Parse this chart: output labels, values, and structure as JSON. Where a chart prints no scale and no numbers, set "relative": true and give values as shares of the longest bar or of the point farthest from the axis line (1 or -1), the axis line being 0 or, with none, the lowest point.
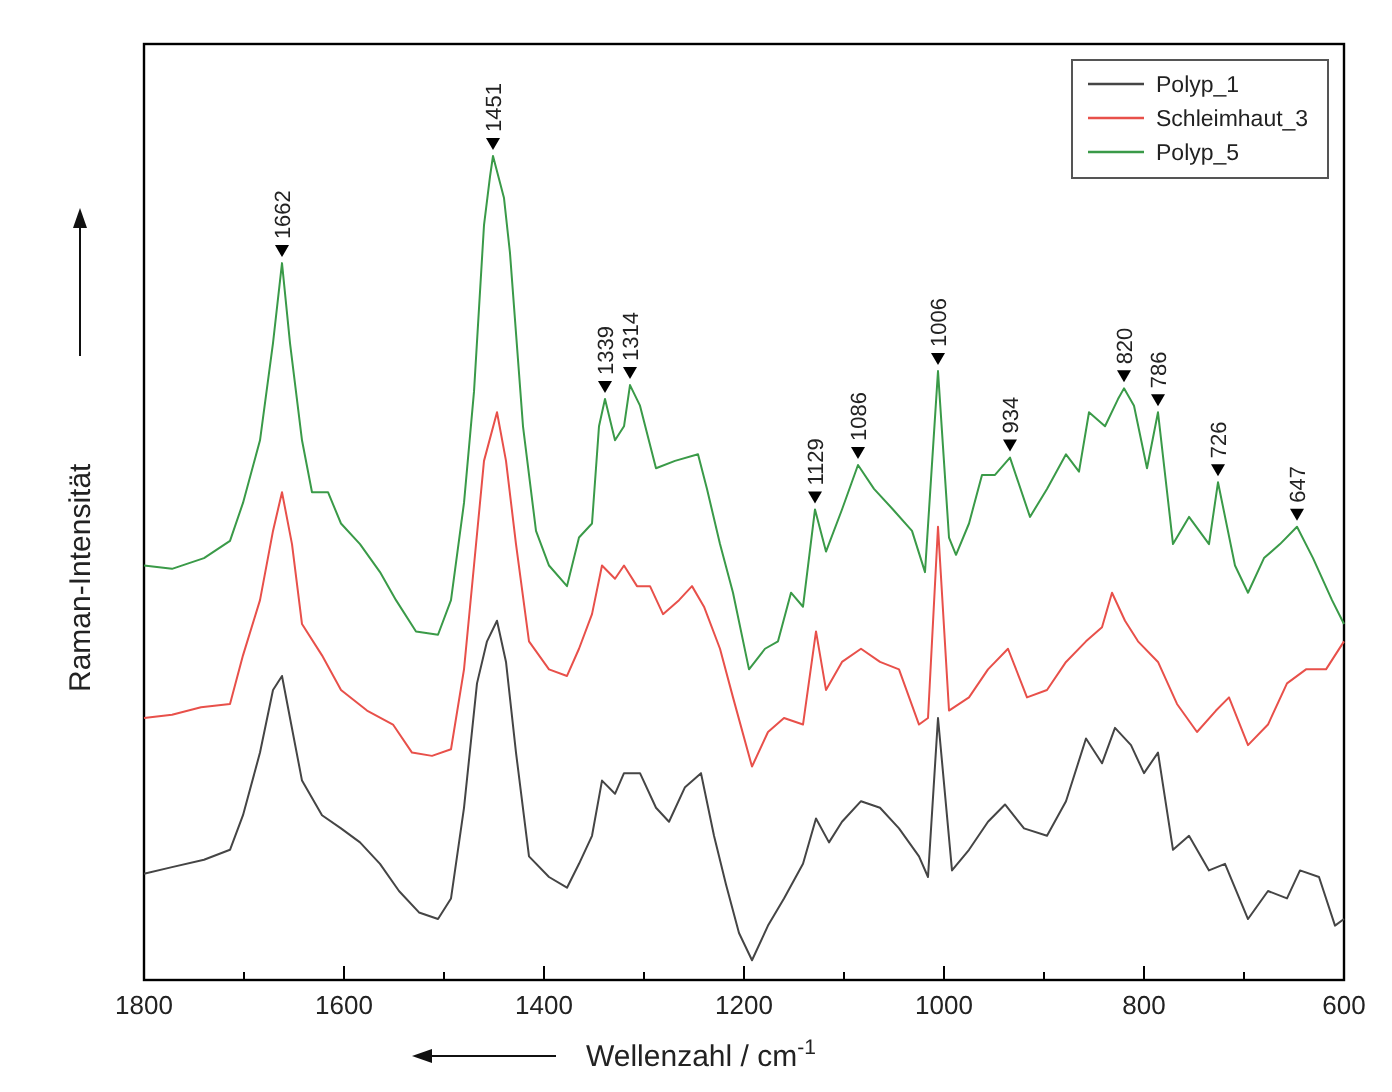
{
  "chart_data": {
    "type": "line",
    "relative": true,
    "xlabel": "Wellenzahl / cm$^{-1}$",
    "ylabel": "Raman-Intensität",
    "xlim": [
      1800,
      600
    ],
    "xticks": [
      1800,
      {
        "value": 1700,
        "label": null
      },
      1600,
      {
        "value": 1500,
        "label": null
      },
      1400,
      {
        "value": 1300,
        "label": null
      },
      1200,
      {
        "value": 1100,
        "label": null
      },
      1000,
      {
        "value": 900,
        "label": null
      },
      800,
      {
        "value": 700,
        "label": null
      },
      600
    ],
    "tick_labels": "x",
    "legend": "top right",
    "marker": "none",
    "line_style": "solid",
    "series": [
      {
        "name": "Polyp_1",
        "color": "#454545",
        "x": [
          1800,
          1772,
          1740,
          1714,
          1701,
          1684,
          1671,
          1662,
          1654,
          1642,
          1622,
          1603,
          1584,
          1564,
          1545,
          1525,
          1506,
          1493,
          1480,
          1467,
          1457,
          1447,
          1438,
          1428,
          1415,
          1395,
          1377,
          1365,
          1352,
          1342,
          1329,
          1320,
          1304,
          1288,
          1275,
          1259,
          1243,
          1230,
          1218,
          1205,
          1192,
          1176,
          1160,
          1141,
          1128,
          1115,
          1102,
          1083,
          1064,
          1045,
          1025,
          1016,
          1006,
          992,
          975,
          956,
          939,
          920,
          897,
          878,
          858,
          842,
          829,
          813,
          800,
          786,
          771,
          755,
          735,
          719,
          696,
          676,
          657,
          644,
          625,
          609,
          600
        ],
        "values": [
          0.129,
          0.137,
          0.146,
          0.158,
          0.2,
          0.276,
          0.352,
          0.369,
          0.318,
          0.242,
          0.2,
          0.184,
          0.167,
          0.141,
          0.108,
          0.082,
          0.074,
          0.099,
          0.209,
          0.36,
          0.411,
          0.436,
          0.386,
          0.276,
          0.15,
          0.125,
          0.112,
          0.141,
          0.175,
          0.242,
          0.226,
          0.251,
          0.251,
          0.209,
          0.192,
          0.234,
          0.251,
          0.175,
          0.116,
          0.057,
          0.024,
          0.066,
          0.099,
          0.141,
          0.196,
          0.167,
          0.192,
          0.217,
          0.209,
          0.184,
          0.15,
          0.125,
          0.318,
          0.133,
          0.158,
          0.192,
          0.213,
          0.184,
          0.175,
          0.217,
          0.293,
          0.263,
          0.306,
          0.285,
          0.251,
          0.276,
          0.158,
          0.175,
          0.133,
          0.141,
          0.074,
          0.108,
          0.099,
          0.133,
          0.125,
          0.066,
          0.074
        ]
      },
      {
        "name": "Schleimhaut_3",
        "color": "#e8504a",
        "x": [
          1800,
          1772,
          1743,
          1714,
          1701,
          1684,
          1671,
          1662,
          1652,
          1642,
          1622,
          1603,
          1577,
          1551,
          1532,
          1512,
          1493,
          1480,
          1470,
          1460,
          1447,
          1438,
          1428,
          1415,
          1395,
          1377,
          1365,
          1352,
          1342,
          1329,
          1320,
          1307,
          1294,
          1281,
          1265,
          1252,
          1240,
          1224,
          1211,
          1192,
          1176,
          1160,
          1141,
          1128,
          1118,
          1102,
          1083,
          1064,
          1045,
          1025,
          1016,
          1006,
          995,
          975,
          956,
          936,
          917,
          897,
          878,
          858,
          842,
          832,
          819,
          806,
          786,
          767,
          747,
          728,
          715,
          696,
          676,
          657,
          638,
          618,
          600
        ],
        "values": [
          0.318,
          0.322,
          0.331,
          0.335,
          0.394,
          0.461,
          0.545,
          0.592,
          0.529,
          0.432,
          0.394,
          0.352,
          0.327,
          0.31,
          0.276,
          0.272,
          0.28,
          0.377,
          0.503,
          0.63,
          0.689,
          0.63,
          0.529,
          0.411,
          0.377,
          0.369,
          0.402,
          0.444,
          0.503,
          0.487,
          0.503,
          0.478,
          0.478,
          0.444,
          0.461,
          0.478,
          0.453,
          0.402,
          0.343,
          0.259,
          0.301,
          0.318,
          0.31,
          0.423,
          0.352,
          0.386,
          0.402,
          0.386,
          0.377,
          0.31,
          0.318,
          0.55,
          0.327,
          0.343,
          0.377,
          0.402,
          0.343,
          0.352,
          0.386,
          0.411,
          0.428,
          0.47,
          0.436,
          0.411,
          0.386,
          0.335,
          0.301,
          0.327,
          0.343,
          0.285,
          0.31,
          0.36,
          0.377,
          0.377,
          0.411
        ]
      },
      {
        "name": "Polyp_5",
        "color": "#3a9a48",
        "x": [
          1800,
          1772,
          1740,
          1714,
          1701,
          1684,
          1671,
          1662,
          1654,
          1642,
          1632,
          1616,
          1603,
          1584,
          1564,
          1548,
          1528,
          1506,
          1493,
          1480,
          1470,
          1460,
          1454,
          1451,
          1440,
          1434,
          1421,
          1408,
          1395,
          1377,
          1365,
          1352,
          1345,
          1339,
          1329,
          1320,
          1314,
          1304,
          1288,
          1269,
          1246,
          1237,
          1224,
          1211,
          1195,
          1179,
          1166,
          1153,
          1141,
          1129,
          1118,
          1102,
          1086,
          1070,
          1051,
          1032,
          1019,
          1006,
          995,
          988,
          975,
          962,
          949,
          934,
          914,
          897,
          878,
          865,
          855,
          839,
          826,
          820,
          810,
          797,
          786,
          771,
          755,
          735,
          726,
          709,
          696,
          680,
          664,
          647,
          631,
          612,
          600
        ],
        "values": [
          0.503,
          0.499,
          0.512,
          0.533,
          0.579,
          0.655,
          0.773,
          0.87,
          0.773,
          0.655,
          0.592,
          0.592,
          0.554,
          0.529,
          0.495,
          0.461,
          0.423,
          0.419,
          0.461,
          0.579,
          0.714,
          0.916,
          0.975,
          1,
          0.949,
          0.882,
          0.672,
          0.545,
          0.503,
          0.478,
          0.537,
          0.554,
          0.672,
          0.705,
          0.655,
          0.672,
          0.722,
          0.697,
          0.621,
          0.63,
          0.638,
          0.596,
          0.529,
          0.47,
          0.377,
          0.402,
          0.411,
          0.47,
          0.453,
          0.571,
          0.52,
          0.571,
          0.625,
          0.596,
          0.571,
          0.545,
          0.495,
          0.739,
          0.537,
          0.516,
          0.554,
          0.613,
          0.613,
          0.634,
          0.562,
          0.596,
          0.638,
          0.617,
          0.689,
          0.672,
          0.705,
          0.718,
          0.697,
          0.621,
          0.689,
          0.529,
          0.562,
          0.529,
          0.604,
          0.503,
          0.47,
          0.512,
          0.529,
          0.55,
          0.512,
          0.461,
          0.432
        ]
      }
    ],
    "annotations": [
      {
        "text": "1662",
        "x": 1662,
        "y": 0.87
      },
      {
        "text": "1451",
        "x": 1451,
        "y": 1
      },
      {
        "text": "1339",
        "x": 1339,
        "y": 0.705
      },
      {
        "text": "1314",
        "x": 1314,
        "y": 0.722
      },
      {
        "text": "1129",
        "x": 1129,
        "y": 0.571
      },
      {
        "text": "1086",
        "x": 1086,
        "y": 0.625
      },
      {
        "text": "1006",
        "x": 1006,
        "y": 0.739
      },
      {
        "text": "934",
        "x": 934,
        "y": 0.634
      },
      {
        "text": "820",
        "x": 820,
        "y": 0.718
      },
      {
        "text": "786",
        "x": 786,
        "y": 0.689
      },
      {
        "text": "726",
        "x": 726,
        "y": 0.604
      },
      {
        "text": "647",
        "x": 647,
        "y": 0.55
      }
    ]
  }
}
